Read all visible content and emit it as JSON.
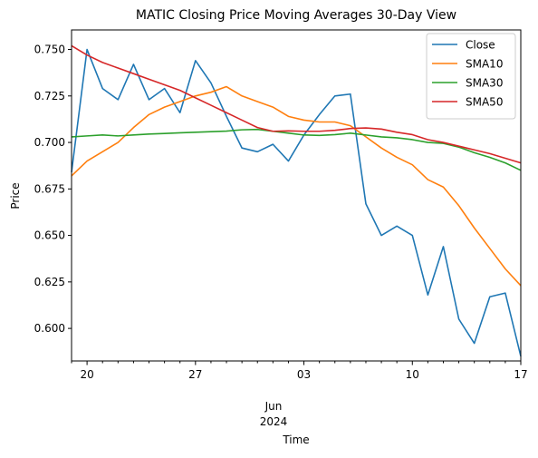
{
  "chart_data": {
    "type": "line",
    "title": "MATIC Closing Price Moving Averages 30-Day View",
    "xlabel": "Time",
    "ylabel": "Price",
    "xlim": [
      "2024-05-19",
      "2024-06-17"
    ],
    "ylim": [
      0.5825,
      0.7605
    ],
    "x_ticks": [
      {
        "date": "2024-05-20",
        "label": "20"
      },
      {
        "date": "2024-05-27",
        "label": "27"
      },
      {
        "date": "2024-06-03",
        "label": "03"
      },
      {
        "date": "2024-06-10",
        "label": "10"
      },
      {
        "date": "2024-06-17",
        "label": "17"
      }
    ],
    "x_minor_ticks": [
      "2024-05-19",
      "2024-05-21",
      "2024-05-22",
      "2024-05-23",
      "2024-05-24",
      "2024-05-25",
      "2024-05-26",
      "2024-05-28",
      "2024-05-29",
      "2024-05-30",
      "2024-05-31",
      "2024-06-01",
      "2024-06-02",
      "2024-06-04",
      "2024-06-05",
      "2024-06-06",
      "2024-06-07",
      "2024-06-08",
      "2024-06-09",
      "2024-06-11",
      "2024-06-12",
      "2024-06-13",
      "2024-06-14",
      "2024-06-15",
      "2024-06-16"
    ],
    "x_sublabel": [
      "Jun",
      "2024"
    ],
    "y_ticks": [
      {
        "value": 0.6,
        "label": "0.600"
      },
      {
        "value": 0.625,
        "label": "0.625"
      },
      {
        "value": 0.65,
        "label": "0.650"
      },
      {
        "value": 0.675,
        "label": "0.675"
      },
      {
        "value": 0.7,
        "label": "0.700"
      },
      {
        "value": 0.725,
        "label": "0.725"
      },
      {
        "value": 0.75,
        "label": "0.750"
      }
    ],
    "grid": false,
    "legend_position": "top-right",
    "dates": [
      "2024-05-19",
      "2024-05-20",
      "2024-05-21",
      "2024-05-22",
      "2024-05-23",
      "2024-05-24",
      "2024-05-25",
      "2024-05-26",
      "2024-05-27",
      "2024-05-28",
      "2024-05-29",
      "2024-05-30",
      "2024-05-31",
      "2024-06-01",
      "2024-06-02",
      "2024-06-03",
      "2024-06-04",
      "2024-06-05",
      "2024-06-06",
      "2024-06-07",
      "2024-06-08",
      "2024-06-09",
      "2024-06-10",
      "2024-06-11",
      "2024-06-12",
      "2024-06-13",
      "2024-06-14",
      "2024-06-15",
      "2024-06-16",
      "2024-06-17"
    ],
    "series": [
      {
        "name": "Close",
        "color": "#1f77b4",
        "values": [
          0.684,
          0.75,
          0.729,
          0.723,
          0.742,
          0.723,
          0.729,
          0.716,
          0.744,
          0.732,
          0.714,
          0.697,
          0.695,
          0.699,
          0.69,
          0.704,
          0.715,
          0.725,
          0.726,
          0.667,
          0.65,
          0.655,
          0.65,
          0.618,
          0.644,
          0.605,
          0.592,
          0.617,
          0.619,
          0.585
        ]
      },
      {
        "name": "SMA10",
        "color": "#ff7f0e",
        "values": [
          0.682,
          0.69,
          0.695,
          0.7,
          0.708,
          0.715,
          0.719,
          0.722,
          0.725,
          0.727,
          0.73,
          0.725,
          0.722,
          0.719,
          0.714,
          0.712,
          0.711,
          0.711,
          0.709,
          0.703,
          0.697,
          0.692,
          0.688,
          0.68,
          0.676,
          0.666,
          0.654,
          0.643,
          0.632,
          0.623
        ]
      },
      {
        "name": "SMA30",
        "color": "#2ca02c",
        "values": [
          0.703,
          0.7035,
          0.704,
          0.7035,
          0.704,
          0.7045,
          0.7048,
          0.7052,
          0.7055,
          0.7058,
          0.7061,
          0.7068,
          0.707,
          0.706,
          0.705,
          0.704,
          0.7038,
          0.7042,
          0.705,
          0.704,
          0.703,
          0.7025,
          0.7015,
          0.7,
          0.6995,
          0.6975,
          0.6945,
          0.692,
          0.689,
          0.685
        ]
      },
      {
        "name": "SMA50",
        "color": "#d62728",
        "values": [
          0.752,
          0.747,
          0.743,
          0.74,
          0.737,
          0.734,
          0.731,
          0.728,
          0.724,
          0.72,
          0.716,
          0.712,
          0.708,
          0.706,
          0.7062,
          0.706,
          0.706,
          0.7065,
          0.7075,
          0.7078,
          0.7072,
          0.7055,
          0.7042,
          0.7015,
          0.7,
          0.698,
          0.696,
          0.694,
          0.6915,
          0.689
        ]
      }
    ]
  }
}
